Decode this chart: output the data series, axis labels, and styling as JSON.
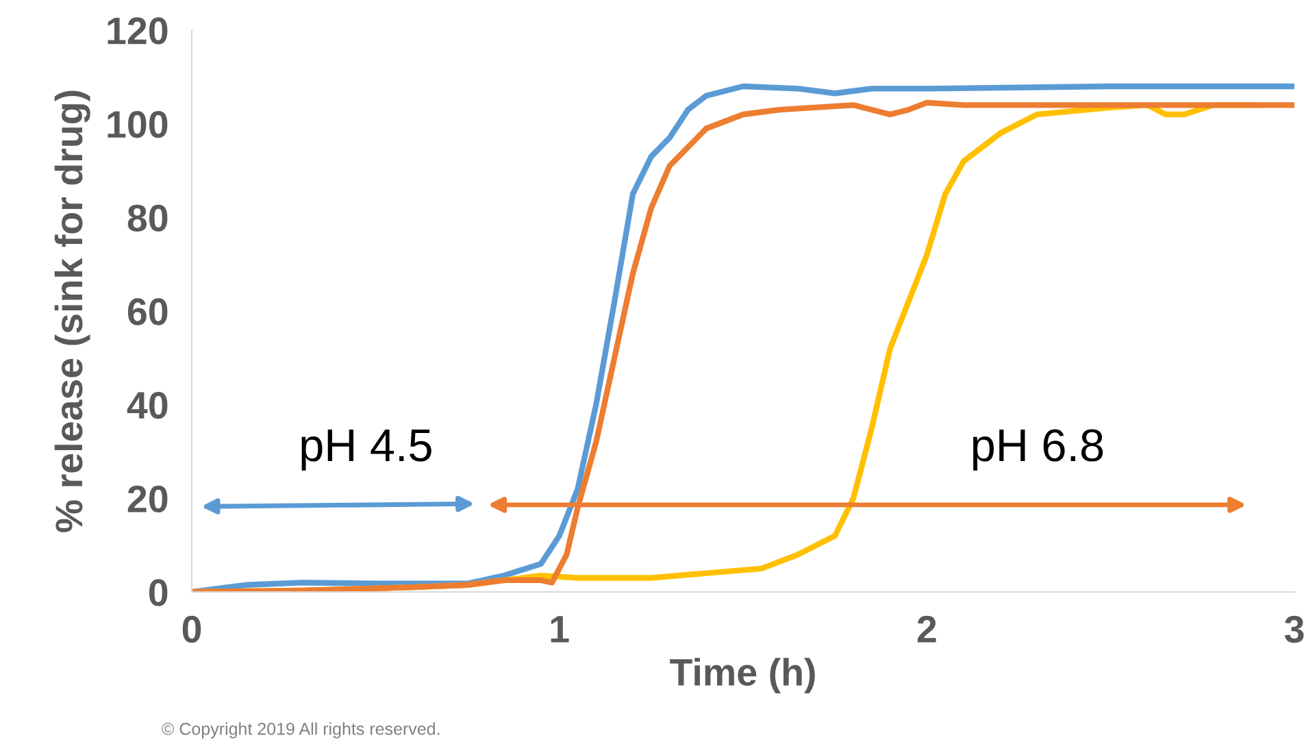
{
  "chart_data": {
    "type": "line",
    "xlabel": "Time (h)",
    "ylabel": "% release (sink for drug)",
    "xlim": [
      0,
      3
    ],
    "xticks": [
      0,
      1,
      2,
      3
    ],
    "ylim": [
      0,
      120
    ],
    "yticks": [
      0,
      20,
      40,
      60,
      80,
      100,
      120
    ],
    "grid": false,
    "legend": false,
    "marker": "none",
    "line_style": "solid",
    "series": [
      {
        "color": "#5b9bd5",
        "x": [
          0,
          0.15,
          0.3,
          0.5,
          0.75,
          0.85,
          0.95,
          1.0,
          1.05,
          1.1,
          1.15,
          1.2,
          1.25,
          1.3,
          1.35,
          1.4,
          1.5,
          1.65,
          1.75,
          1.85,
          2.0,
          2.5,
          3
        ],
        "values": [
          0,
          1.5,
          2,
          1.8,
          1.8,
          3.5,
          6,
          12,
          22,
          40,
          62,
          85,
          93,
          97,
          103,
          106,
          108,
          107.5,
          106.5,
          107.5,
          107.5,
          108,
          108
        ]
      },
      {
        "color": "#ffc000",
        "x": [
          0,
          0.3,
          0.6,
          0.75,
          0.85,
          0.95,
          1.05,
          1.25,
          1.4,
          1.55,
          1.65,
          1.75,
          1.8,
          1.85,
          1.9,
          2.0,
          2.05,
          2.1,
          2.2,
          2.3,
          2.5,
          2.6,
          2.65,
          2.7,
          2.78,
          2.85,
          2.9
        ],
        "values": [
          0,
          0.3,
          1,
          1.5,
          2.5,
          3.5,
          3,
          3,
          4,
          5,
          8,
          12,
          20,
          35,
          52,
          72,
          85,
          92,
          98,
          102,
          103.5,
          104,
          102,
          102,
          104,
          104,
          104
        ]
      },
      {
        "color": "#ed7d31",
        "x": [
          0,
          0.3,
          0.6,
          0.75,
          0.85,
          0.95,
          0.98,
          1.02,
          1.05,
          1.1,
          1.15,
          1.2,
          1.25,
          1.3,
          1.4,
          1.5,
          1.6,
          1.8,
          1.9,
          1.95,
          2.0,
          2.1,
          2.5,
          3
        ],
        "values": [
          0,
          0.3,
          1,
          1.5,
          2.5,
          2.5,
          2,
          8,
          18,
          32,
          50,
          68,
          82,
          91,
          99,
          102,
          103,
          104,
          102,
          103,
          104.5,
          104,
          104,
          104
        ]
      }
    ],
    "annotations": [
      "pH 4.5",
      "pH 6.8",
      "© Copyright 2019 All rights reserved."
    ]
  }
}
